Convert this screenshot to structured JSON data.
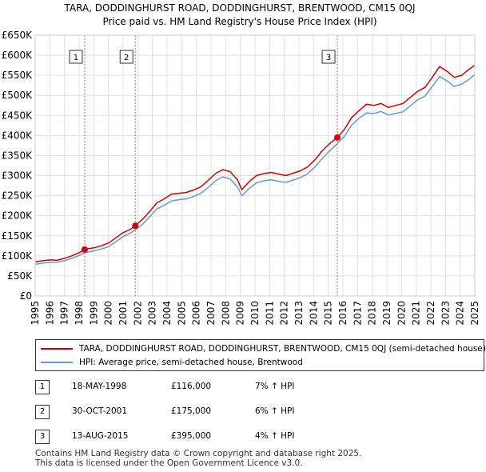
{
  "title_line1": "TARA, DODDINGHURST ROAD, DODDINGHURST, BRENTWOOD, CM15 0QJ",
  "title_line2": "Price paid vs. HM Land Registry's House Price Index (HPI)",
  "chart_data": {
    "type": "line",
    "title": "Price paid vs. HM Land Registry's House Price Index (HPI)",
    "xlim": [
      1995,
      2025
    ],
    "ylim": [
      0,
      650000
    ],
    "x_ticks": [
      1995,
      1996,
      1997,
      1998,
      1999,
      2000,
      2001,
      2002,
      2003,
      2004,
      2005,
      2006,
      2007,
      2008,
      2009,
      2010,
      2011,
      2012,
      2013,
      2014,
      2015,
      2016,
      2017,
      2018,
      2019,
      2020,
      2021,
      2022,
      2023,
      2024,
      2025
    ],
    "y_ticks": [
      {
        "value": 0,
        "label": "£0"
      },
      {
        "value": 50000,
        "label": "£50K"
      },
      {
        "value": 100000,
        "label": "£100K"
      },
      {
        "value": 150000,
        "label": "£150K"
      },
      {
        "value": 200000,
        "label": "£200K"
      },
      {
        "value": 250000,
        "label": "£250K"
      },
      {
        "value": 300000,
        "label": "£300K"
      },
      {
        "value": 350000,
        "label": "£350K"
      },
      {
        "value": 400000,
        "label": "£400K"
      },
      {
        "value": 450000,
        "label": "£450K"
      },
      {
        "value": 500000,
        "label": "£500K"
      },
      {
        "value": 550000,
        "label": "£550K"
      },
      {
        "value": 600000,
        "label": "£600K"
      },
      {
        "value": 650000,
        "label": "£650K"
      }
    ],
    "grid": true,
    "series": [
      {
        "name": "TARA, DODDINGHURST ROAD, DODDINGHURST, BRENTWOOD, CM15 0QJ (semi-detached house)",
        "color": "#cc0000",
        "points": [
          [
            1995.0,
            85000
          ],
          [
            1995.5,
            88000
          ],
          [
            1996.0,
            90000
          ],
          [
            1996.5,
            89000
          ],
          [
            1997.0,
            94000
          ],
          [
            1997.5,
            100000
          ],
          [
            1998.0,
            108000
          ],
          [
            1998.38,
            116000
          ],
          [
            1999.0,
            120000
          ],
          [
            1999.5,
            125000
          ],
          [
            2000.0,
            132000
          ],
          [
            2000.5,
            145000
          ],
          [
            2001.0,
            158000
          ],
          [
            2001.5,
            166000
          ],
          [
            2001.83,
            175000
          ],
          [
            2002.3,
            190000
          ],
          [
            2002.8,
            210000
          ],
          [
            2003.3,
            232000
          ],
          [
            2003.8,
            242000
          ],
          [
            2004.3,
            254000
          ],
          [
            2004.8,
            256000
          ],
          [
            2005.3,
            258000
          ],
          [
            2005.8,
            264000
          ],
          [
            2006.3,
            272000
          ],
          [
            2006.8,
            288000
          ],
          [
            2007.3,
            305000
          ],
          [
            2007.8,
            315000
          ],
          [
            2008.3,
            310000
          ],
          [
            2008.8,
            290000
          ],
          [
            2009.1,
            265000
          ],
          [
            2009.6,
            285000
          ],
          [
            2010.1,
            300000
          ],
          [
            2010.6,
            305000
          ],
          [
            2011.1,
            308000
          ],
          [
            2011.6,
            304000
          ],
          [
            2012.1,
            300000
          ],
          [
            2012.6,
            306000
          ],
          [
            2013.1,
            312000
          ],
          [
            2013.6,
            322000
          ],
          [
            2014.1,
            340000
          ],
          [
            2014.6,
            362000
          ],
          [
            2015.1,
            380000
          ],
          [
            2015.62,
            395000
          ],
          [
            2016.1,
            415000
          ],
          [
            2016.6,
            445000
          ],
          [
            2017.1,
            462000
          ],
          [
            2017.6,
            478000
          ],
          [
            2018.1,
            475000
          ],
          [
            2018.6,
            480000
          ],
          [
            2019.1,
            470000
          ],
          [
            2019.6,
            475000
          ],
          [
            2020.1,
            480000
          ],
          [
            2020.6,
            495000
          ],
          [
            2021.1,
            510000
          ],
          [
            2021.6,
            520000
          ],
          [
            2022.1,
            545000
          ],
          [
            2022.6,
            572000
          ],
          [
            2023.1,
            560000
          ],
          [
            2023.6,
            545000
          ],
          [
            2024.1,
            550000
          ],
          [
            2024.6,
            565000
          ],
          [
            2025.0,
            575000
          ]
        ]
      },
      {
        "name": "HPI: Average price, semi-detached house, Brentwood",
        "color": "#6699cc",
        "points": [
          [
            1995.0,
            79000
          ],
          [
            1995.5,
            82000
          ],
          [
            1996.0,
            84000
          ],
          [
            1996.5,
            84000
          ],
          [
            1997.0,
            88000
          ],
          [
            1997.5,
            94000
          ],
          [
            1998.0,
            101000
          ],
          [
            1998.38,
            108000
          ],
          [
            1999.0,
            112000
          ],
          [
            1999.5,
            117000
          ],
          [
            2000.0,
            123000
          ],
          [
            2000.5,
            135000
          ],
          [
            2001.0,
            148000
          ],
          [
            2001.5,
            157000
          ],
          [
            2001.83,
            165000
          ],
          [
            2002.3,
            178000
          ],
          [
            2002.8,
            197000
          ],
          [
            2003.3,
            217000
          ],
          [
            2003.8,
            226000
          ],
          [
            2004.3,
            237000
          ],
          [
            2004.8,
            240000
          ],
          [
            2005.3,
            242000
          ],
          [
            2005.8,
            248000
          ],
          [
            2006.3,
            256000
          ],
          [
            2006.8,
            270000
          ],
          [
            2007.3,
            287000
          ],
          [
            2007.8,
            297000
          ],
          [
            2008.3,
            292000
          ],
          [
            2008.8,
            272000
          ],
          [
            2009.1,
            250000
          ],
          [
            2009.6,
            268000
          ],
          [
            2010.1,
            282000
          ],
          [
            2010.6,
            287000
          ],
          [
            2011.1,
            290000
          ],
          [
            2011.6,
            286000
          ],
          [
            2012.1,
            283000
          ],
          [
            2012.6,
            289000
          ],
          [
            2013.1,
            295000
          ],
          [
            2013.6,
            305000
          ],
          [
            2014.1,
            322000
          ],
          [
            2014.6,
            343000
          ],
          [
            2015.1,
            362000
          ],
          [
            2015.62,
            380000
          ],
          [
            2016.1,
            398000
          ],
          [
            2016.6,
            426000
          ],
          [
            2017.1,
            443000
          ],
          [
            2017.6,
            456000
          ],
          [
            2018.1,
            455000
          ],
          [
            2018.6,
            460000
          ],
          [
            2019.1,
            451000
          ],
          [
            2019.6,
            455000
          ],
          [
            2020.1,
            459000
          ],
          [
            2020.6,
            474000
          ],
          [
            2021.1,
            489000
          ],
          [
            2021.6,
            498000
          ],
          [
            2022.1,
            522000
          ],
          [
            2022.6,
            547000
          ],
          [
            2023.1,
            536000
          ],
          [
            2023.6,
            522000
          ],
          [
            2024.1,
            528000
          ],
          [
            2024.6,
            540000
          ],
          [
            2025.0,
            552000
          ]
        ]
      }
    ],
    "sales": [
      {
        "marker": "1",
        "x": 1998.38,
        "value": 116000
      },
      {
        "marker": "2",
        "x": 2001.83,
        "value": 175000
      },
      {
        "marker": "3",
        "x": 2015.62,
        "value": 395000
      }
    ]
  },
  "legend": {
    "property_label": "TARA, DODDINGHURST ROAD, DODDINGHURST, BRENTWOOD, CM15 0QJ (semi-detached house)",
    "hpi_label": "HPI: Average price, semi-detached house, Brentwood",
    "property_color": "#cc0000",
    "hpi_color": "#6699cc"
  },
  "transactions": [
    {
      "num": "1",
      "date": "18-MAY-1998",
      "price": "£116,000",
      "hpi": "7% ↑ HPI"
    },
    {
      "num": "2",
      "date": "30-OCT-2001",
      "price": "£175,000",
      "hpi": "6% ↑ HPI"
    },
    {
      "num": "3",
      "date": "13-AUG-2015",
      "price": "£395,000",
      "hpi": "4% ↑ HPI"
    }
  ],
  "footer": {
    "line1": "Contains HM Land Registry data © Crown copyright and database right 2025.",
    "line2": "This data is licensed under the Open Government Licence v3.0."
  }
}
